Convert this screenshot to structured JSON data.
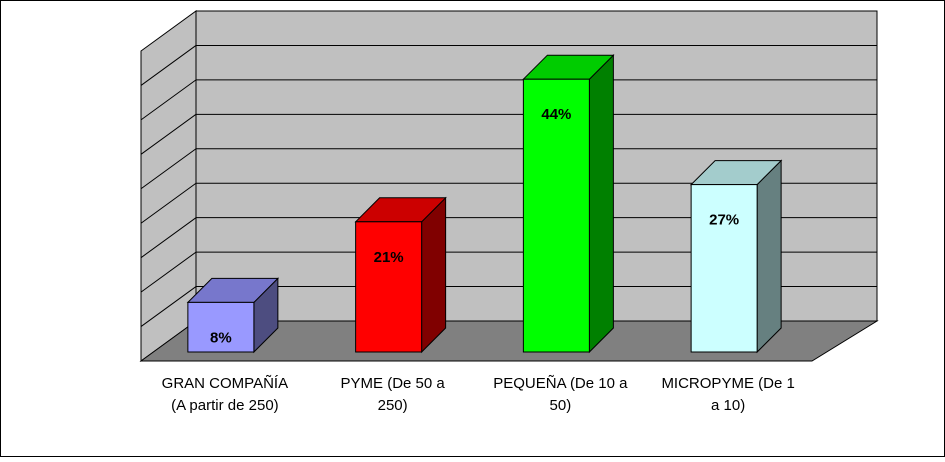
{
  "chart_data": {
    "type": "bar",
    "three_d": true,
    "categories": [
      "GRAN COMPAÑÍA (A partir de 250)",
      "PYME (De 50 a 250)",
      "PEQUEÑA (De 10 a 50)",
      "MICROPYME (De 1 a 10)"
    ],
    "category_lines": [
      [
        "GRAN COMPAÑÍA",
        "(A partir de 250)"
      ],
      [
        "PYME (De 50 a",
        "250)"
      ],
      [
        "PEQUEÑA (De 10 a",
        "50)"
      ],
      [
        "MICROPYME (De 1",
        "a 10)"
      ]
    ],
    "values": [
      8,
      21,
      44,
      27
    ],
    "data_labels": [
      "8%",
      "21%",
      "44%",
      "27%"
    ],
    "unit": "%",
    "ylim": [
      0,
      45
    ],
    "grid": true,
    "legend": "none",
    "colors": {
      "bars": [
        {
          "front": "#9999ff",
          "side": "#4d4d80",
          "top": "#7777cc"
        },
        {
          "front": "#ff0000",
          "side": "#800000",
          "top": "#cc0000"
        },
        {
          "front": "#00ff00",
          "side": "#008000",
          "top": "#00cc00"
        },
        {
          "front": "#ccffff",
          "side": "#668080",
          "top": "#a3cccc"
        }
      ],
      "wall": "#c0c0c0",
      "side_wall": "#c0c0c0",
      "floor": "#808080",
      "grid": "#000000"
    }
  }
}
